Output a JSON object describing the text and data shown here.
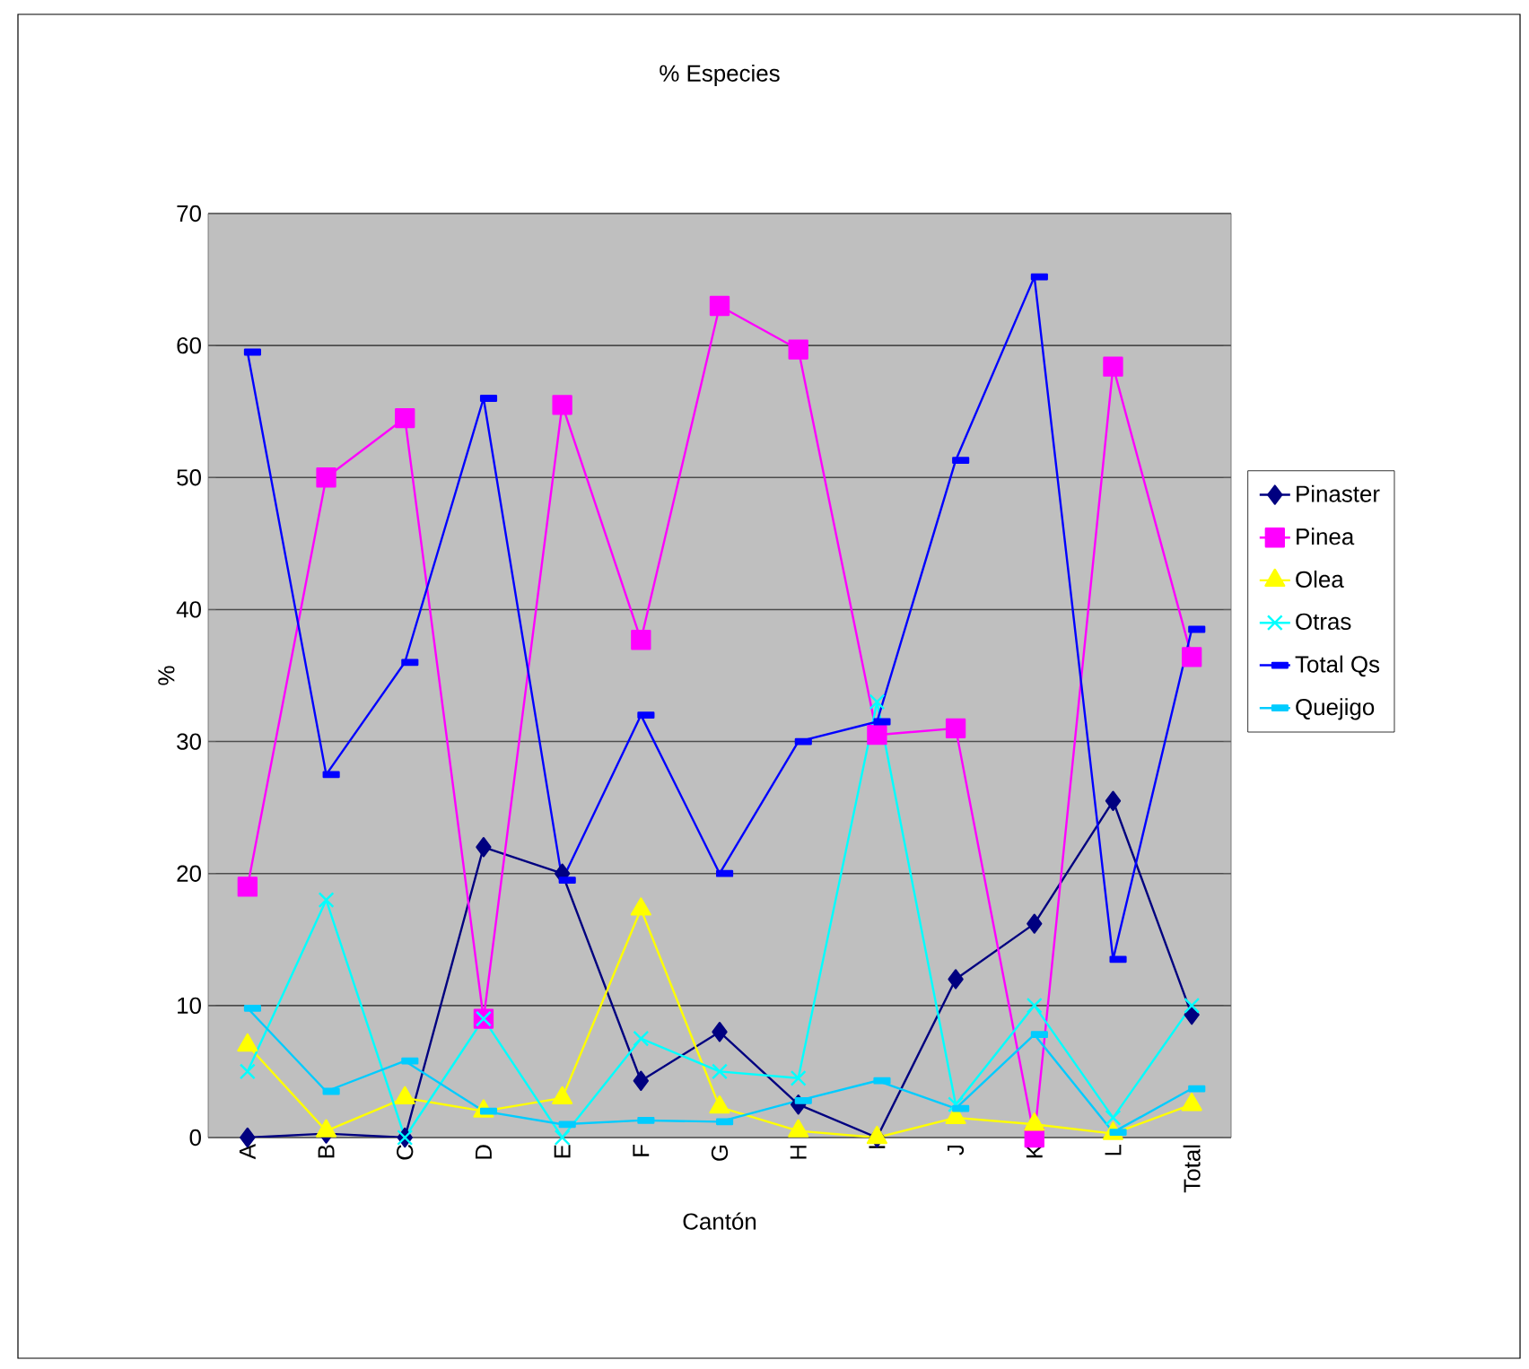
{
  "chart_data": {
    "type": "line",
    "title": "% Especies",
    "xlabel": "Cantón",
    "ylabel": "%",
    "categories": [
      "A",
      "B",
      "C",
      "D",
      "E",
      "F",
      "G",
      "H",
      "I",
      "J",
      "K",
      "L",
      "Total"
    ],
    "series": [
      {
        "name": "Pinaster",
        "color": "#000080",
        "marker": "diamond",
        "values": [
          0,
          0.3,
          0,
          22,
          20,
          4.3,
          8,
          2.5,
          0,
          12,
          16.2,
          25.5,
          9.3
        ]
      },
      {
        "name": "Pinea",
        "color": "#ff00ff",
        "marker": "square",
        "values": [
          19,
          50,
          54.5,
          9,
          55.5,
          37.7,
          63,
          59.7,
          30.5,
          31,
          0,
          58.4,
          36.4
        ]
      },
      {
        "name": "Olea",
        "color": "#ffff00",
        "marker": "triangle",
        "values": [
          7,
          0.5,
          3,
          2,
          3,
          17.3,
          2.3,
          0.5,
          0,
          1.5,
          1,
          0.3,
          2.5
        ]
      },
      {
        "name": "Otras",
        "color": "#00ffff",
        "marker": "cross",
        "values": [
          5,
          18,
          0,
          9,
          0,
          7.5,
          5,
          4.5,
          33,
          2.5,
          10,
          1.5,
          10
        ]
      },
      {
        "name": "Total Qs",
        "color": "#0000ff",
        "marker": "square",
        "values": [
          59.5,
          27.5,
          36,
          56,
          19.5,
          32,
          20,
          30,
          31.5,
          51.3,
          65.2,
          13.5,
          38.5
        ]
      },
      {
        "name": "Quejigo",
        "color": "#00ccff",
        "marker": "square",
        "values": [
          9.8,
          3.5,
          5.8,
          2,
          1,
          1.3,
          1.2,
          2.8,
          4.3,
          2.2,
          7.8,
          0.4,
          3.7
        ]
      }
    ],
    "ylim": [
      0,
      70
    ],
    "yticks": [
      0,
      10,
      20,
      30,
      40,
      50,
      60,
      70
    ],
    "grid": "y",
    "legend": "right"
  }
}
